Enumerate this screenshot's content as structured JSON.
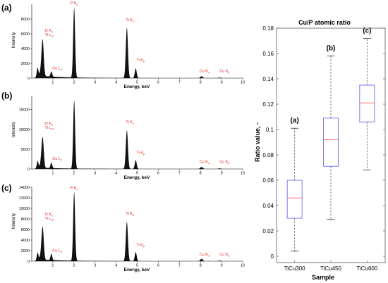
{
  "chart_data": [
    {
      "id": "spectrum-a",
      "type": "area",
      "panel_label": "(a)",
      "xlabel": "Energy, keV",
      "ylabel": "Intensity",
      "xlim": [
        0,
        10
      ],
      "ylim": [
        0,
        10000
      ],
      "xticks": [
        1,
        2,
        3,
        4,
        5,
        6,
        7,
        8,
        9,
        10
      ],
      "yticks": [
        0,
        2000,
        4000,
        6000,
        8000
      ],
      "ytick_labels": [
        "0",
        "2000",
        "4000",
        "6000",
        "8000"
      ],
      "peaks": [
        {
          "e": 0.28,
          "h": 1200,
          "w": 0.04
        },
        {
          "e": 0.45,
          "h": 900,
          "w": 0.05
        },
        {
          "e": 0.52,
          "h": 4600,
          "w": 0.05
        },
        {
          "e": 0.93,
          "h": 700,
          "w": 0.04
        },
        {
          "e": 2.01,
          "h": 9400,
          "w": 0.045
        },
        {
          "e": 4.51,
          "h": 6800,
          "w": 0.05
        },
        {
          "e": 4.93,
          "h": 1300,
          "w": 0.045
        },
        {
          "e": 8.05,
          "h": 250,
          "w": 0.06
        },
        {
          "e": 8.9,
          "h": 80,
          "w": 0.06
        }
      ],
      "labels": [
        {
          "e": 0.62,
          "y": 6300,
          "lines": [
            "O K",
            "Ti L"
          ],
          "sub": [
            "α",
            "α1"
          ]
        },
        {
          "e": 0.98,
          "y": 1200,
          "lines": [
            "Cu L"
          ],
          "sub": [
            "α"
          ]
        },
        {
          "e": 2.01,
          "y": 10000,
          "lines": [
            "P K"
          ],
          "sub": [
            "α"
          ],
          "center": true
        },
        {
          "e": 4.46,
          "y": 7700,
          "lines": [
            "Ti K"
          ],
          "sub": [
            "α"
          ]
        },
        {
          "e": 4.96,
          "y": 2300,
          "lines": [
            "Ti K"
          ],
          "sub": [
            "β"
          ]
        },
        {
          "e": 7.95,
          "y": 800,
          "lines": [
            "Cu K"
          ],
          "sub": [
            "α"
          ]
        },
        {
          "e": 8.9,
          "y": 800,
          "lines": [
            "Cu K"
          ],
          "sub": [
            "β"
          ]
        }
      ]
    },
    {
      "id": "spectrum-b",
      "type": "area",
      "panel_label": "(b)",
      "xlabel": "Energy, keV",
      "ylabel": "Intensity",
      "xlim": [
        0,
        10
      ],
      "ylim": [
        0,
        18500
      ],
      "xticks": [
        1,
        2,
        3,
        4,
        5,
        6,
        7,
        8,
        9,
        10
      ],
      "yticks": [
        0,
        5000,
        10000,
        15000
      ],
      "ytick_labels": [
        "0",
        "5000",
        "10000",
        "15000"
      ],
      "peaks": [
        {
          "e": 0.28,
          "h": 1800,
          "w": 0.04
        },
        {
          "e": 0.45,
          "h": 1500,
          "w": 0.05
        },
        {
          "e": 0.52,
          "h": 7200,
          "w": 0.05
        },
        {
          "e": 0.93,
          "h": 1400,
          "w": 0.04
        },
        {
          "e": 2.01,
          "h": 17200,
          "w": 0.045
        },
        {
          "e": 4.51,
          "h": 9700,
          "w": 0.05
        },
        {
          "e": 4.93,
          "h": 2200,
          "w": 0.045
        },
        {
          "e": 8.05,
          "h": 500,
          "w": 0.06
        },
        {
          "e": 8.9,
          "h": 150,
          "w": 0.06
        }
      ],
      "labels": [
        {
          "e": 0.62,
          "y": 11200,
          "lines": [
            "O K",
            "Ti L"
          ],
          "sub": [
            "α",
            "α1"
          ]
        },
        {
          "e": 0.98,
          "y": 2300,
          "lines": [
            "Cu L"
          ],
          "sub": [
            "α"
          ]
        },
        {
          "e": 4.46,
          "y": 11600,
          "lines": [
            "Ti K"
          ],
          "sub": [
            "α"
          ]
        },
        {
          "e": 4.96,
          "y": 3800,
          "lines": [
            "Ti K"
          ],
          "sub": [
            "β"
          ]
        },
        {
          "e": 7.95,
          "y": 1500,
          "lines": [
            "Cu K"
          ],
          "sub": [
            "α"
          ]
        },
        {
          "e": 8.9,
          "y": 1500,
          "lines": [
            "Cu K"
          ],
          "sub": [
            "β"
          ]
        }
      ]
    },
    {
      "id": "spectrum-c",
      "type": "area",
      "panel_label": "(c)",
      "xlabel": "Energy, keV",
      "ylabel": "Intensity",
      "xlim": [
        0,
        10
      ],
      "ylim": [
        0,
        14000
      ],
      "xticks": [
        1,
        2,
        3,
        4,
        5,
        6,
        7,
        8,
        9,
        10
      ],
      "yticks": [
        0,
        2000,
        4000,
        6000,
        8000,
        10000,
        12000,
        14000
      ],
      "ytick_labels": [
        "0",
        "2000",
        "4000",
        "6000",
        "8000",
        "10000",
        "12000",
        "14000"
      ],
      "peaks": [
        {
          "e": 0.28,
          "h": 1400,
          "w": 0.04
        },
        {
          "e": 0.45,
          "h": 1100,
          "w": 0.05
        },
        {
          "e": 0.52,
          "h": 5800,
          "w": 0.05
        },
        {
          "e": 0.93,
          "h": 1200,
          "w": 0.04
        },
        {
          "e": 2.01,
          "h": 13000,
          "w": 0.045
        },
        {
          "e": 4.51,
          "h": 7400,
          "w": 0.05
        },
        {
          "e": 4.93,
          "h": 1700,
          "w": 0.045
        },
        {
          "e": 8.05,
          "h": 450,
          "w": 0.06
        },
        {
          "e": 8.9,
          "h": 120,
          "w": 0.06
        }
      ],
      "labels": [
        {
          "e": 0.62,
          "y": 8700,
          "lines": [
            "O K",
            "Ti L"
          ],
          "sub": [
            "α",
            "α1"
          ]
        },
        {
          "e": 0.98,
          "y": 1800,
          "lines": [
            "Cu L"
          ],
          "sub": [
            "α"
          ]
        },
        {
          "e": 2.01,
          "y": 13700,
          "lines": [
            "P K"
          ],
          "sub": [
            "α"
          ],
          "center": true
        },
        {
          "e": 4.46,
          "y": 8800,
          "lines": [
            "Ti K"
          ],
          "sub": [
            "α"
          ]
        },
        {
          "e": 4.96,
          "y": 2900,
          "lines": [
            "Ti K"
          ],
          "sub": [
            "β"
          ]
        },
        {
          "e": 7.95,
          "y": 1100,
          "lines": [
            "Cu K"
          ],
          "sub": [
            "α"
          ]
        },
        {
          "e": 8.9,
          "y": 1100,
          "lines": [
            "Cu K"
          ],
          "sub": [
            "β"
          ]
        }
      ]
    },
    {
      "id": "boxplot",
      "type": "box",
      "title": "Cu/P atomic ratio",
      "xlabel": "Sample",
      "ylabel": "Ratio value, -",
      "ylim": [
        -0.005,
        0.18
      ],
      "yticks": [
        0,
        0.02,
        0.04,
        0.06,
        0.08,
        0.1,
        0.12,
        0.14,
        0.16,
        0.18
      ],
      "ytick_labels": [
        "0",
        "0.02",
        "0.04",
        "0.06",
        "0.08",
        "0.1",
        "0.12",
        "0.14",
        "0.16",
        "0.18"
      ],
      "categories": [
        "TiCu300",
        "TiCu450",
        "TiCu600"
      ],
      "box_labels": [
        "(a)",
        "(b)",
        "(c)"
      ],
      "boxes": [
        {
          "min": 0.004,
          "q1": 0.03,
          "median": 0.046,
          "q3": 0.06,
          "max": 0.101
        },
        {
          "min": 0.029,
          "q1": 0.071,
          "median": 0.092,
          "q3": 0.109,
          "max": 0.158
        },
        {
          "min": 0.068,
          "q1": 0.106,
          "median": 0.121,
          "q3": 0.135,
          "max": 0.172
        }
      ],
      "colors": {
        "box": "#6b6bf0",
        "median": "#ff5a5a",
        "whisker": "#555555",
        "cap": "#333333"
      }
    }
  ],
  "colors": {
    "spectrum_fill": "#111111",
    "peak_label": "#e01b1b",
    "axis": "#000000"
  }
}
